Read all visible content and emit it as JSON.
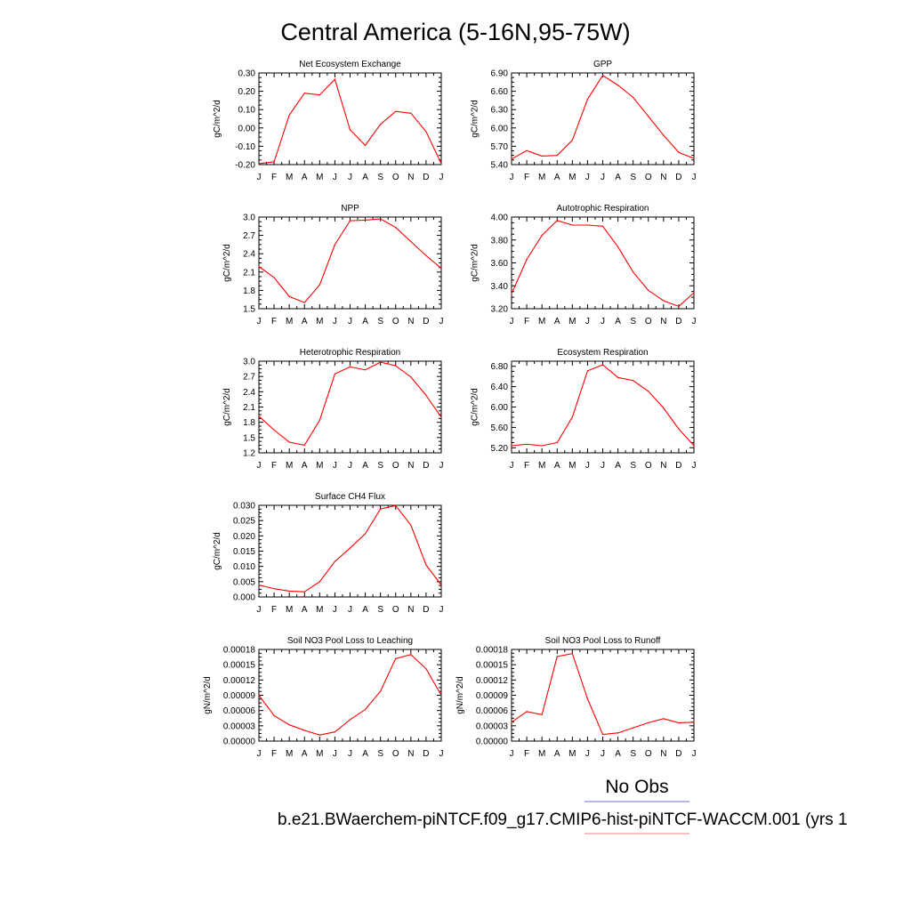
{
  "figure": {
    "title": "Central America (5-16N,95-75W)",
    "legend": {
      "label": "No Obs",
      "line_colors": [
        "#6f6fe0",
        "#f08080"
      ]
    },
    "caption": "b.e21.BWaerchem-piNTCF.f09_g17.CMIP6-hist-piNTCF-WACCM.001 (yrs 1"
  },
  "chart_data": [
    {
      "type": "line",
      "title": "Net Ecosystem Exchange",
      "ylabel": "gC/m^2/d",
      "categories": [
        "J",
        "F",
        "M",
        "A",
        "M",
        "J",
        "J",
        "A",
        "S",
        "O",
        "N",
        "D",
        "J"
      ],
      "ylim": [
        -0.2,
        0.3
      ],
      "yticks": [
        "0.30",
        "0.20",
        "0.10",
        "0.00",
        "-0.10",
        "-0.20"
      ],
      "series": [
        {
          "color": "#ff0000",
          "values": [
            -0.195,
            -0.185,
            0.07,
            0.19,
            0.18,
            0.265,
            -0.01,
            -0.095,
            0.02,
            0.09,
            0.08,
            -0.02,
            -0.195
          ]
        }
      ]
    },
    {
      "type": "line",
      "title": "GPP",
      "ylabel": "gC/m^2/d",
      "categories": [
        "J",
        "F",
        "M",
        "A",
        "M",
        "J",
        "J",
        "A",
        "S",
        "O",
        "N",
        "D",
        "J"
      ],
      "ylim": [
        5.4,
        6.9
      ],
      "yticks": [
        "6.90",
        "6.60",
        "6.30",
        "6.00",
        "5.70",
        "5.40"
      ],
      "series": [
        {
          "color": "#ff0000",
          "values": [
            5.49,
            5.63,
            5.54,
            5.55,
            5.8,
            6.47,
            6.86,
            6.7,
            6.5,
            6.19,
            5.88,
            5.6,
            5.5
          ]
        }
      ]
    },
    {
      "type": "line",
      "title": "NPP",
      "ylabel": "gC/m^2/d",
      "categories": [
        "J",
        "F",
        "M",
        "A",
        "M",
        "J",
        "J",
        "A",
        "S",
        "O",
        "N",
        "D",
        "J"
      ],
      "ylim": [
        1.5,
        3.0
      ],
      "yticks": [
        "3.0",
        "2.7",
        "2.4",
        "2.1",
        "1.8",
        "1.5"
      ],
      "series": [
        {
          "color": "#ff0000",
          "values": [
            2.19,
            2.01,
            1.7,
            1.6,
            1.89,
            2.55,
            2.94,
            2.95,
            2.97,
            2.83,
            2.6,
            2.37,
            2.16
          ]
        }
      ]
    },
    {
      "type": "line",
      "title": "Autotrophic Respiration",
      "ylabel": "gC/m^2/d",
      "categories": [
        "J",
        "F",
        "M",
        "A",
        "M",
        "J",
        "J",
        "A",
        "S",
        "O",
        "N",
        "D",
        "J"
      ],
      "ylim": [
        3.2,
        4.0
      ],
      "yticks": [
        "4.00",
        "3.80",
        "3.60",
        "3.40",
        "3.20"
      ],
      "series": [
        {
          "color": "#ff0000",
          "values": [
            3.33,
            3.63,
            3.84,
            3.97,
            3.93,
            3.93,
            3.92,
            3.74,
            3.52,
            3.36,
            3.27,
            3.22,
            3.34
          ]
        }
      ]
    },
    {
      "type": "line",
      "title": "Heterotrophic Respiration",
      "ylabel": "gC/m^2/d",
      "categories": [
        "J",
        "F",
        "M",
        "A",
        "M",
        "J",
        "J",
        "A",
        "S",
        "O",
        "N",
        "D",
        "J"
      ],
      "ylim": [
        1.2,
        3.0
      ],
      "yticks": [
        "3.0",
        "2.7",
        "2.4",
        "2.1",
        "1.8",
        "1.5",
        "1.2"
      ],
      "series": [
        {
          "color": "#ff0000",
          "values": [
            1.92,
            1.65,
            1.41,
            1.35,
            1.84,
            2.75,
            2.89,
            2.83,
            2.98,
            2.91,
            2.69,
            2.33,
            1.9
          ]
        }
      ]
    },
    {
      "type": "line",
      "title": "Ecosystem Respiration",
      "ylabel": "gC/m^2/d",
      "categories": [
        "J",
        "F",
        "M",
        "A",
        "M",
        "J",
        "J",
        "A",
        "S",
        "O",
        "N",
        "D",
        "J"
      ],
      "ylim": [
        5.1,
        6.9
      ],
      "yticks": [
        "6.80",
        "6.40",
        "6.00",
        "5.60",
        "5.20"
      ],
      "series": [
        {
          "color": "#ff0000",
          "values": [
            5.24,
            5.27,
            5.24,
            5.3,
            5.8,
            6.71,
            6.83,
            6.58,
            6.52,
            6.31,
            5.98,
            5.57,
            5.24
          ]
        }
      ]
    },
    {
      "type": "line",
      "title": "Surface CH4 Flux",
      "ylabel": "gC/m^2/d",
      "categories": [
        "J",
        "F",
        "M",
        "A",
        "M",
        "J",
        "J",
        "A",
        "S",
        "O",
        "N",
        "D",
        "J"
      ],
      "ylim": [
        0.0,
        0.03
      ],
      "yticks": [
        "0.030",
        "0.025",
        "0.020",
        "0.015",
        "0.010",
        "0.005",
        "0.000"
      ],
      "series": [
        {
          "color": "#ff0000",
          "values": [
            0.0039,
            0.0027,
            0.0019,
            0.0017,
            0.005,
            0.0116,
            0.016,
            0.0207,
            0.0288,
            0.0299,
            0.0235,
            0.0105,
            0.0039
          ]
        }
      ]
    },
    {
      "type": "line",
      "title": "Soil NO3 Pool Loss to Leaching",
      "ylabel": "gN/m^2/d",
      "categories": [
        "J",
        "F",
        "M",
        "A",
        "M",
        "J",
        "J",
        "A",
        "S",
        "O",
        "N",
        "D",
        "J"
      ],
      "ylim": [
        0.0,
        0.00018
      ],
      "yticks": [
        "0.00018",
        "0.00015",
        "0.00012",
        "0.00009",
        "0.00006",
        "0.00003",
        "0.00000"
      ],
      "series": [
        {
          "color": "#ff0000",
          "values": [
            9e-05,
            5e-05,
            3.2e-05,
            2.1e-05,
            1.2e-05,
            1.8e-05,
            4.2e-05,
            6.2e-05,
            9.8e-05,
            0.000162,
            0.00017,
            0.000142,
            9e-05
          ]
        }
      ]
    },
    {
      "type": "line",
      "title": "Soil NO3 Pool Loss to Runoff",
      "ylabel": "gN/m^2/d",
      "categories": [
        "J",
        "F",
        "M",
        "A",
        "M",
        "J",
        "J",
        "A",
        "S",
        "O",
        "N",
        "D",
        "J"
      ],
      "ylim": [
        0.0,
        0.00018
      ],
      "yticks": [
        "0.00018",
        "0.00015",
        "0.00012",
        "0.00009",
        "0.00006",
        "0.00003",
        "0.00000"
      ],
      "series": [
        {
          "color": "#ff0000",
          "values": [
            3.7e-05,
            5.8e-05,
            5.2e-05,
            0.000166,
            0.000172,
            8.3e-05,
            1.3e-05,
            1.6e-05,
            2.6e-05,
            3.6e-05,
            4.4e-05,
            3.6e-05,
            3.7e-05
          ]
        }
      ]
    }
  ]
}
